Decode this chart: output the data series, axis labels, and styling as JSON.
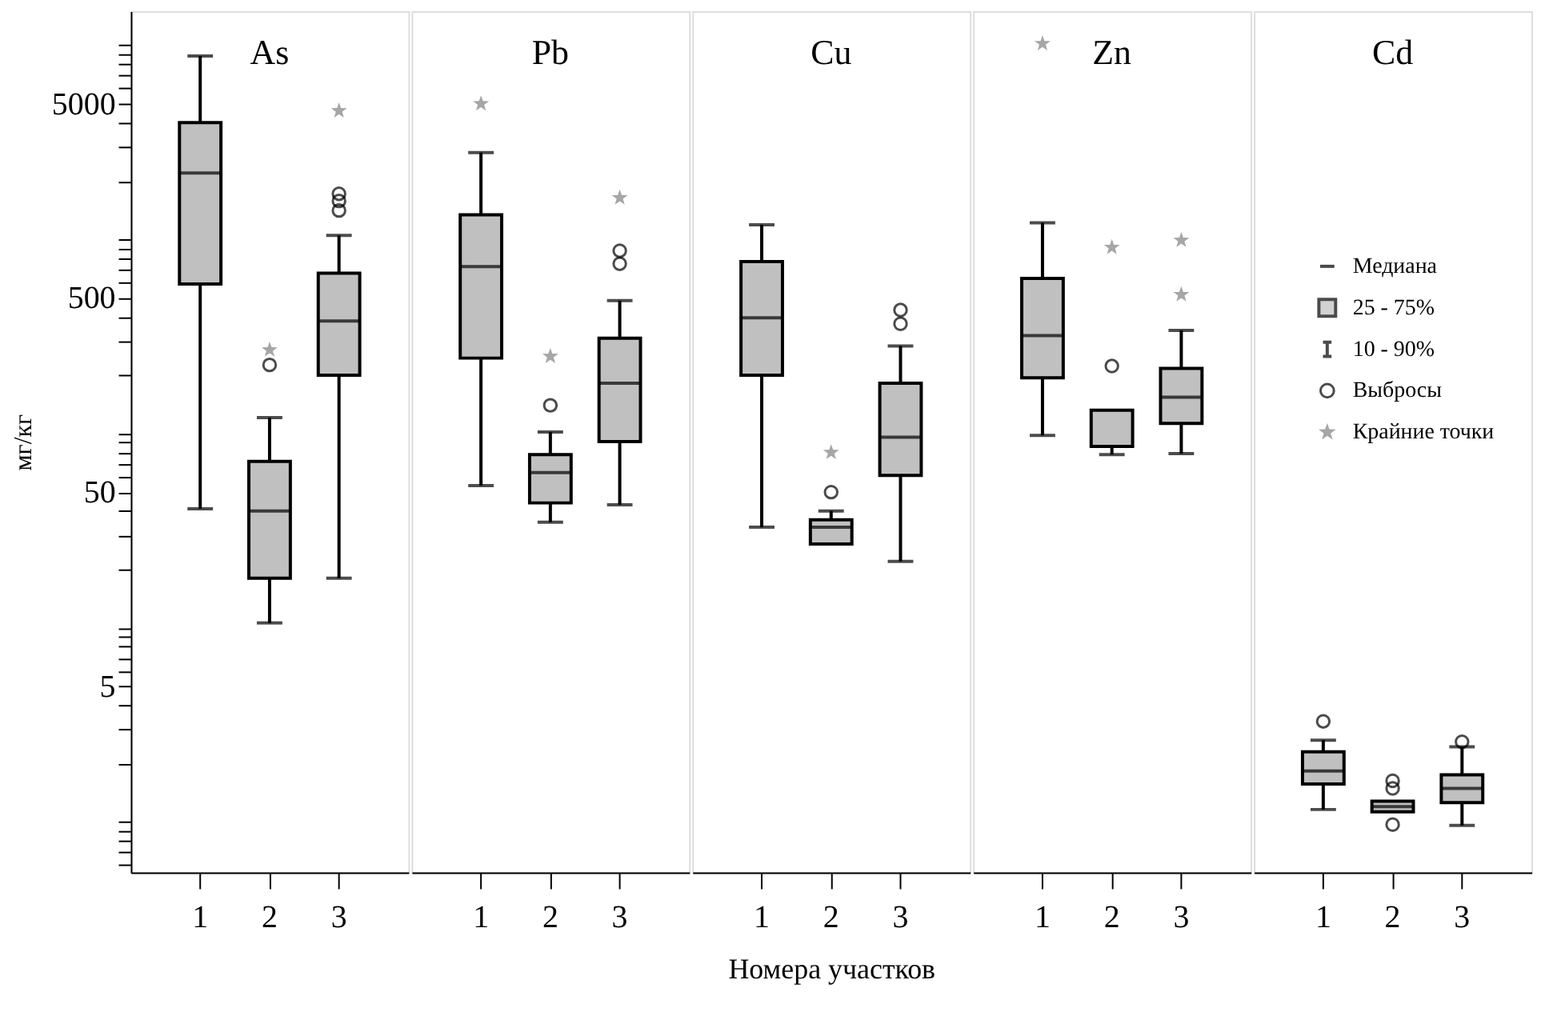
{
  "chart_data": [
    {
      "type": "box",
      "title": "As",
      "ylabel": "мг/кг",
      "categories": [
        "1",
        "2",
        "3"
      ],
      "log": true,
      "grid": false,
      "ylim": [
        0.55,
        15000
      ],
      "yticks": [
        {
          "value": 0.6,
          "label": null
        },
        {
          "value": 0.7,
          "label": null
        },
        {
          "value": 0.8,
          "label": null
        },
        {
          "value": 0.9,
          "label": null
        },
        {
          "value": 1,
          "label": null
        },
        {
          "value": 2,
          "label": null
        },
        {
          "value": 3,
          "label": null
        },
        {
          "value": 4,
          "label": null
        },
        5,
        {
          "value": 6,
          "label": null
        },
        {
          "value": 7,
          "label": null
        },
        {
          "value": 8,
          "label": null
        },
        {
          "value": 9,
          "label": null
        },
        {
          "value": 10,
          "label": null
        },
        {
          "value": 20,
          "label": null
        },
        {
          "value": 30,
          "label": null
        },
        {
          "value": 40,
          "label": null
        },
        50,
        {
          "value": 60,
          "label": null
        },
        {
          "value": 70,
          "label": null
        },
        {
          "value": 80,
          "label": null
        },
        {
          "value": 90,
          "label": null
        },
        {
          "value": 100,
          "label": null
        },
        {
          "value": 200,
          "label": null
        },
        {
          "value": 300,
          "label": null
        },
        {
          "value": 400,
          "label": null
        },
        500,
        {
          "value": 600,
          "label": null
        },
        {
          "value": 700,
          "label": null
        },
        {
          "value": 800,
          "label": null
        },
        {
          "value": 900,
          "label": null
        },
        {
          "value": 1000,
          "label": null
        },
        {
          "value": 2000,
          "label": null
        },
        {
          "value": 3000,
          "label": null
        },
        {
          "value": 4000,
          "label": null
        },
        5000,
        {
          "value": 6000,
          "label": null
        },
        {
          "value": 7000,
          "label": null
        },
        {
          "value": 8000,
          "label": null
        },
        {
          "value": 9000,
          "label": null
        },
        {
          "value": 10000,
          "label": null
        }
      ],
      "series": [
        {
          "type": "box",
          "color": "#c0c0c0",
          "boxes": [
            {
              "low": 41,
              "q1": 590,
              "median": 2200,
              "q3": 4000,
              "high": 8800
            },
            {
              "low": 10.6,
              "q1": 18,
              "median": 40,
              "q3": 72,
              "high": 121,
              "outliers": [
                226
              ]
            },
            {
              "low": 18,
              "q1": 200,
              "median": 380,
              "q3": 670,
              "high": 1050,
              "outliers": [
                1720,
                1580,
                1410
              ]
            }
          ]
        },
        {
          "type": "scatter",
          "marker": "star",
          "color": "#808080",
          "x": [
            "2",
            "3"
          ],
          "values": [
            270,
            4600
          ]
        }
      ]
    },
    {
      "type": "box",
      "title": "Pb",
      "categories": [
        "1",
        "2",
        "3"
      ],
      "log": true,
      "grid": false,
      "ylim": [
        0.55,
        15000
      ],
      "tick_labels": "x",
      "series": [
        {
          "type": "box",
          "color": "#c0c0c0",
          "boxes": [
            {
              "low": 54,
              "q1": 245,
              "median": 725,
              "q3": 1340,
              "high": 2800
            },
            {
              "low": 35,
              "q1": 44,
              "median": 63,
              "q3": 78,
              "high": 102,
              "outliers": [
                140
              ]
            },
            {
              "low": 43,
              "q1": 91,
              "median": 182,
              "q3": 310,
              "high": 485,
              "outliers": [
                875,
                750
              ]
            }
          ]
        },
        {
          "type": "scatter",
          "marker": "star",
          "color": "#808080",
          "x": [
            "1",
            "2",
            "3"
          ],
          "values": [
            5000,
            250,
            1640
          ]
        }
      ]
    },
    {
      "type": "box",
      "title": "Cu",
      "xlabel": "Номера участков",
      "categories": [
        "1",
        "2",
        "3"
      ],
      "log": true,
      "grid": false,
      "ylim": [
        0.55,
        15000
      ],
      "tick_labels": "x",
      "series": [
        {
          "type": "box",
          "color": "#c0c0c0",
          "boxes": [
            {
              "low": 33,
              "q1": 200,
              "median": 395,
              "q3": 770,
              "high": 1190
            },
            {
              "low": 27,
              "q1": 27,
              "median": 33,
              "q3": 36,
              "high": 40,
              "outliers": [
                50
              ]
            },
            {
              "low": 22,
              "q1": 61,
              "median": 96,
              "q3": 182,
              "high": 283,
              "outliers": [
                433,
                368
              ]
            }
          ]
        },
        {
          "type": "scatter",
          "marker": "star",
          "color": "#808080",
          "x": [
            "2"
          ],
          "values": [
            80
          ]
        }
      ]
    },
    {
      "type": "box",
      "title": "Zn",
      "categories": [
        "1",
        "2",
        "3"
      ],
      "log": true,
      "grid": false,
      "ylim": [
        0.55,
        15000
      ],
      "tick_labels": "x",
      "series": [
        {
          "type": "box",
          "color": "#c0c0c0",
          "boxes": [
            {
              "low": 98,
              "q1": 194,
              "median": 320,
              "q3": 630,
              "high": 1220
            },
            {
              "low": 78,
              "q1": 86,
              "median": 86,
              "q3": 132,
              "high": 132,
              "outliers": [
                223
              ]
            },
            {
              "low": 79,
              "q1": 113,
              "median": 154,
              "q3": 217,
              "high": 340
            }
          ]
        },
        {
          "type": "scatter",
          "marker": "star",
          "color": "#808080",
          "x": [
            "1",
            "2",
            "3",
            "3"
          ],
          "values": [
            10200,
            910,
            990,
            520
          ]
        }
      ]
    },
    {
      "type": "box",
      "title": "Cd",
      "categories": [
        "1",
        "2",
        "3"
      ],
      "log": true,
      "grid": false,
      "ylim": [
        0.55,
        15000
      ],
      "tick_labels": "x",
      "annotations": [
        "Медиана",
        "25 - 75%",
        "10 - 90%",
        "Выбросы",
        "Крайние точки"
      ],
      "series": [
        {
          "type": "box",
          "color": "#c0c0c0",
          "boxes": [
            {
              "low": 1.16,
              "q1": 1.57,
              "median": 1.83,
              "q3": 2.3,
              "high": 2.64,
              "outliers": [
                3.3
              ]
            },
            {
              "low": 1.13,
              "q1": 1.13,
              "median": 1.2,
              "q3": 1.28,
              "high": 1.28,
              "outliers": [
                1.63,
                1.49,
                0.97
              ]
            },
            {
              "low": 0.96,
              "q1": 1.26,
              "median": 1.49,
              "q3": 1.75,
              "high": 2.44,
              "outliers": [
                2.59
              ]
            }
          ]
        }
      ]
    }
  ]
}
